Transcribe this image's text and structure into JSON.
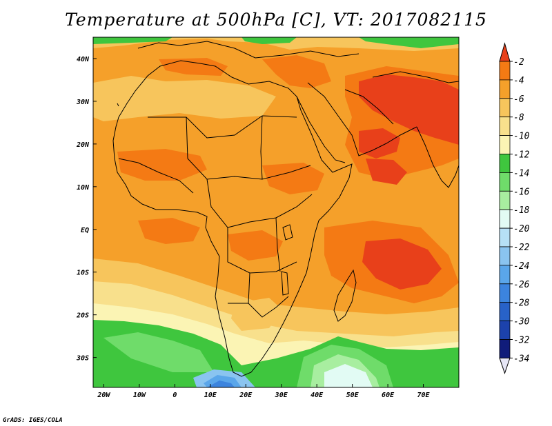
{
  "title": "Temperature at 500hPa [C], VT: 2017082115",
  "credit": "GrADS: IGES/COLA",
  "map": {
    "lon_range": [
      -23,
      80
    ],
    "lat_range": [
      -37,
      45
    ],
    "x_ticks": [
      "20W",
      "10W",
      "0",
      "10E",
      "20E",
      "30E",
      "40E",
      "50E",
      "60E",
      "70E"
    ],
    "y_ticks": [
      "40N",
      "30N",
      "20N",
      "10N",
      "EQ",
      "10S",
      "20S",
      "30S"
    ]
  },
  "colorbar": {
    "labels": [
      "-2",
      "-4",
      "-6",
      "-8",
      "-10",
      "-12",
      "-14",
      "-16",
      "-18",
      "-20",
      "-22",
      "-24",
      "-26",
      "-28",
      "-30",
      "-32",
      "-34"
    ],
    "colors": [
      "#e8401a",
      "#f47a14",
      "#f5a02a",
      "#f7c55c",
      "#f8e08c",
      "#fbf4b4",
      "#3fc63e",
      "#6fdc6a",
      "#a8eea0",
      "#e2fbf4",
      "#b6e0f6",
      "#8ac4f0",
      "#5aa6ea",
      "#3c84de",
      "#2862c8",
      "#1c42ac",
      "#101c7a"
    ],
    "over_color": "#e8401a",
    "under_color": "#e6e6f6"
  }
}
